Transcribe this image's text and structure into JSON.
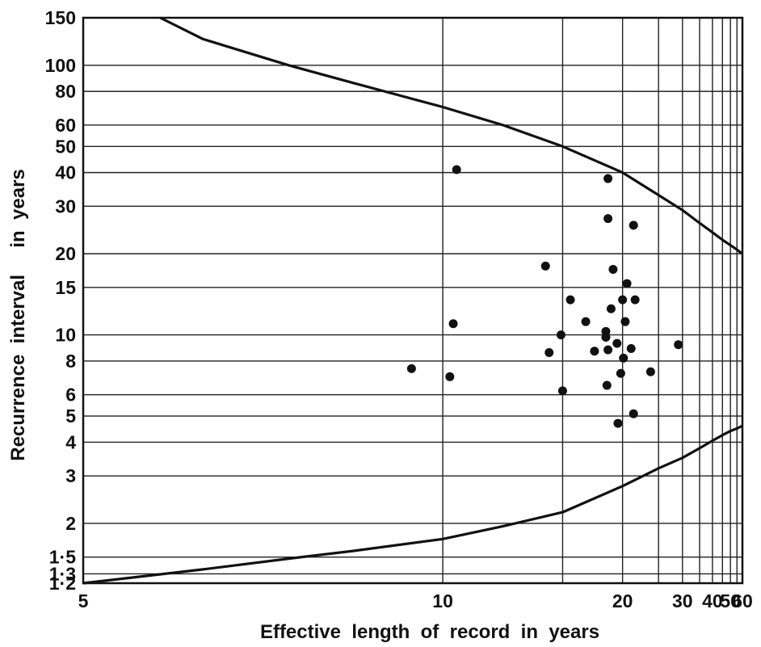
{
  "chart_data": {
    "type": "scatter",
    "title": "",
    "xlabel": "Effective  length  of  record  in  years",
    "ylabel": "Recurrence  interval     in  years",
    "x_scale": "reciprocal",
    "y_scale": "log",
    "xlim": [
      5,
      60
    ],
    "ylim": [
      1.2,
      150
    ],
    "grid": true,
    "x_ticks": [
      5,
      10,
      15,
      20,
      25,
      30,
      35,
      40,
      45,
      50,
      55,
      60
    ],
    "x_tick_labels": [
      {
        "value": 5,
        "label": "5"
      },
      {
        "value": 10,
        "label": "10"
      },
      {
        "value": 20,
        "label": "20"
      },
      {
        "value": 30,
        "label": "30"
      },
      {
        "value": 40,
        "label": "40"
      },
      {
        "value": 50,
        "label": "50"
      },
      {
        "value": 60,
        "label": "60"
      }
    ],
    "y_ticks": [
      {
        "value": 1.2,
        "label": "1·2"
      },
      {
        "value": 1.3,
        "label": "1·3"
      },
      {
        "value": 1.5,
        "label": "1·5"
      },
      {
        "value": 2,
        "label": "2"
      },
      {
        "value": 3,
        "label": "3"
      },
      {
        "value": 4,
        "label": "4"
      },
      {
        "value": 5,
        "label": "5"
      },
      {
        "value": 6,
        "label": "6"
      },
      {
        "value": 8,
        "label": "8"
      },
      {
        "value": 10,
        "label": "10"
      },
      {
        "value": 15,
        "label": "15"
      },
      {
        "value": 20,
        "label": "20"
      },
      {
        "value": 30,
        "label": "30"
      },
      {
        "value": 40,
        "label": "40"
      },
      {
        "value": 50,
        "label": "50"
      },
      {
        "value": 60,
        "label": "60"
      },
      {
        "value": 80,
        "label": "80"
      },
      {
        "value": 100,
        "label": "100"
      },
      {
        "value": 150,
        "label": "150"
      }
    ],
    "series": [
      {
        "type": "line",
        "points": [
          {
            "x": 5.6,
            "y": 150
          },
          {
            "x": 6,
            "y": 125
          },
          {
            "x": 7,
            "y": 100
          },
          {
            "x": 8,
            "y": 86
          },
          {
            "x": 10,
            "y": 70
          },
          {
            "x": 12,
            "y": 60
          },
          {
            "x": 15,
            "y": 50
          },
          {
            "x": 20,
            "y": 40
          },
          {
            "x": 25,
            "y": 33
          },
          {
            "x": 30,
            "y": 29
          },
          {
            "x": 35,
            "y": 26
          },
          {
            "x": 40,
            "y": 24
          },
          {
            "x": 45,
            "y": 22.5
          },
          {
            "x": 50,
            "y": 21.5
          },
          {
            "x": 55,
            "y": 20.7
          },
          {
            "x": 60,
            "y": 20
          }
        ]
      },
      {
        "type": "line",
        "points": [
          {
            "x": 5,
            "y": 1.2
          },
          {
            "x": 6,
            "y": 1.35
          },
          {
            "x": 7,
            "y": 1.48
          },
          {
            "x": 8,
            "y": 1.58
          },
          {
            "x": 10,
            "y": 1.75
          },
          {
            "x": 12,
            "y": 1.95
          },
          {
            "x": 15,
            "y": 2.2
          },
          {
            "x": 20,
            "y": 2.75
          },
          {
            "x": 25,
            "y": 3.2
          },
          {
            "x": 30,
            "y": 3.5
          },
          {
            "x": 35,
            "y": 3.8
          },
          {
            "x": 40,
            "y": 4.05
          },
          {
            "x": 45,
            "y": 4.25
          },
          {
            "x": 50,
            "y": 4.4
          },
          {
            "x": 55,
            "y": 4.5
          },
          {
            "x": 60,
            "y": 4.6
          }
        ]
      },
      {
        "type": "scatter",
        "points": [
          {
            "x": 9.2,
            "y": 7.5
          },
          {
            "x": 10.2,
            "y": 7.0
          },
          {
            "x": 10.3,
            "y": 11
          },
          {
            "x": 10.4,
            "y": 41
          },
          {
            "x": 14.0,
            "y": 18
          },
          {
            "x": 14.2,
            "y": 8.6
          },
          {
            "x": 14.9,
            "y": 10
          },
          {
            "x": 15.0,
            "y": 6.2
          },
          {
            "x": 15.5,
            "y": 13.5
          },
          {
            "x": 16.6,
            "y": 11.2
          },
          {
            "x": 17.3,
            "y": 8.7
          },
          {
            "x": 18.3,
            "y": 10.3
          },
          {
            "x": 18.3,
            "y": 9.8
          },
          {
            "x": 18.4,
            "y": 6.5
          },
          {
            "x": 18.5,
            "y": 38
          },
          {
            "x": 18.5,
            "y": 27
          },
          {
            "x": 18.5,
            "y": 8.8
          },
          {
            "x": 18.8,
            "y": 12.5
          },
          {
            "x": 19.0,
            "y": 17.5
          },
          {
            "x": 19.4,
            "y": 9.3
          },
          {
            "x": 19.5,
            "y": 4.7
          },
          {
            "x": 19.8,
            "y": 7.2
          },
          {
            "x": 20.0,
            "y": 13.5
          },
          {
            "x": 20.1,
            "y": 8.2
          },
          {
            "x": 20.3,
            "y": 11.2
          },
          {
            "x": 20.5,
            "y": 15.5
          },
          {
            "x": 21.0,
            "y": 8.9
          },
          {
            "x": 21.3,
            "y": 5.1
          },
          {
            "x": 21.3,
            "y": 25.5
          },
          {
            "x": 21.5,
            "y": 13.5
          },
          {
            "x": 23.7,
            "y": 7.3
          },
          {
            "x": 29.0,
            "y": 9.2
          }
        ]
      }
    ]
  }
}
